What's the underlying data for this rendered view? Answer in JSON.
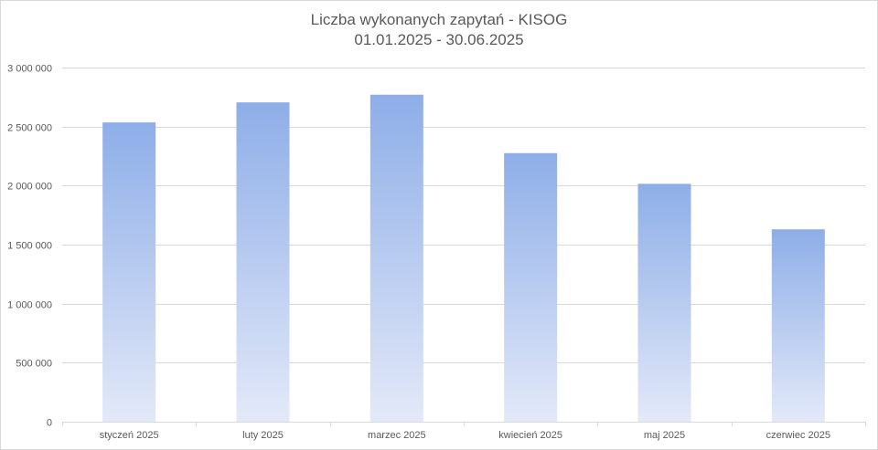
{
  "chart_data": {
    "type": "bar",
    "title": "Liczba wykonanych zapytań - KISOG",
    "subtitle": "01.01.2025 - 30.06.2025",
    "categories": [
      "styczeń 2025",
      "luty 2025",
      "marzec 2025",
      "kwiecień 2025",
      "maj 2025",
      "czerwiec 2025"
    ],
    "values": [
      2535000,
      2705000,
      2770000,
      2275000,
      2015000,
      1630000
    ],
    "ylim": [
      0,
      3000000
    ],
    "yticks": [
      0,
      500000,
      1000000,
      1500000,
      2000000,
      2500000,
      3000000
    ],
    "ytick_labels": [
      "0",
      "500 000",
      "1 000 000",
      "1 500 000",
      "2 000 000",
      "2 500 000",
      "3 000 000"
    ],
    "xlabel": "",
    "ylabel": "",
    "grid": true,
    "legend": "none",
    "bar_gradient_top": "#8eaee8",
    "bar_gradient_bottom": "#e3e9f8",
    "gridline_color": "#d9d9d9"
  }
}
